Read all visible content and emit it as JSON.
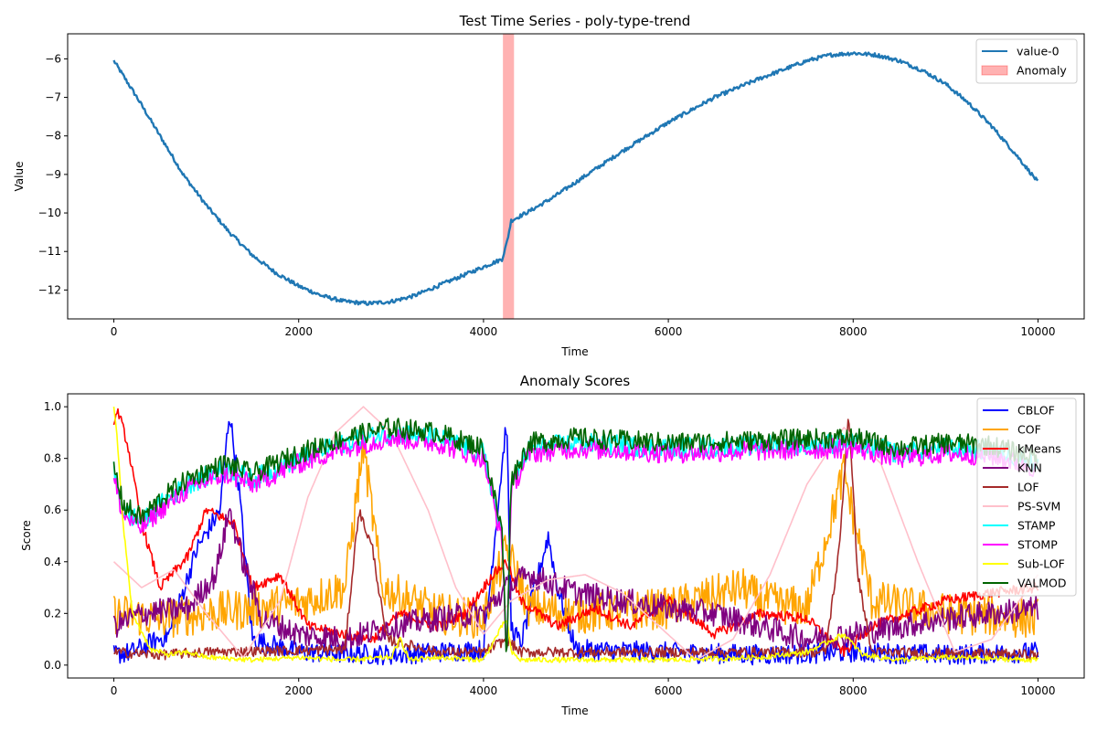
{
  "chart_data": [
    {
      "type": "line",
      "title": "Test Time Series - poly-type-trend",
      "xlabel": "Time",
      "ylabel": "Value",
      "xlim": [
        -500,
        10500
      ],
      "ylim": [
        -12.75,
        -5.35
      ],
      "xticks": [
        0,
        2000,
        4000,
        6000,
        8000,
        10000
      ],
      "yticks": [
        -12,
        -11,
        -10,
        -9,
        -8,
        -7,
        -6
      ],
      "grid": false,
      "legend_position": "top-right",
      "series": [
        {
          "name": "value-0",
          "color": "#1f77b4",
          "noise": 0.05,
          "x": [
            0,
            250,
            500,
            750,
            1000,
            1250,
            1500,
            1750,
            2000,
            2250,
            2500,
            2750,
            3000,
            3250,
            3500,
            3750,
            4000,
            4200,
            4250,
            4300,
            4500,
            4750,
            5000,
            5500,
            6000,
            6500,
            7000,
            7500,
            7750,
            8000,
            8250,
            8500,
            8750,
            9000,
            9250,
            9500,
            9750,
            10000
          ],
          "y": [
            -6.05,
            -7.0,
            -8.0,
            -9.0,
            -9.8,
            -10.5,
            -11.1,
            -11.55,
            -11.9,
            -12.15,
            -12.3,
            -12.35,
            -12.3,
            -12.15,
            -11.9,
            -11.65,
            -11.4,
            -11.2,
            -10.8,
            -10.2,
            -9.95,
            -9.6,
            -9.2,
            -8.4,
            -7.65,
            -7.0,
            -6.5,
            -6.05,
            -5.9,
            -5.85,
            -5.9,
            -6.05,
            -6.3,
            -6.65,
            -7.15,
            -7.75,
            -8.45,
            -9.2
          ]
        }
      ],
      "anomaly": {
        "name": "Anomaly",
        "x0": 4210,
        "x1": 4330,
        "color": "#ff0000",
        "alpha": 0.3
      }
    },
    {
      "type": "line",
      "title": "Anomaly Scores",
      "xlabel": "Time",
      "ylabel": "Score",
      "xlim": [
        -500,
        10500
      ],
      "ylim": [
        -0.05,
        1.05
      ],
      "xticks": [
        0,
        2000,
        4000,
        6000,
        8000,
        10000
      ],
      "yticks": [
        0.0,
        0.2,
        0.4,
        0.6,
        0.8,
        1.0
      ],
      "grid": false,
      "legend_position": "top-right",
      "series": [
        {
          "name": "CBLOF",
          "color": "#0000ff",
          "noise": 0.04,
          "x": [
            0,
            200,
            600,
            900,
            1150,
            1250,
            1350,
            1500,
            2000,
            3000,
            4000,
            4250,
            4300,
            4400,
            4700,
            4800,
            5000,
            6000,
            7000,
            8000,
            9000,
            10000
          ],
          "y": [
            0.04,
            0.05,
            0.12,
            0.45,
            0.6,
            0.98,
            0.7,
            0.1,
            0.05,
            0.04,
            0.06,
            0.95,
            0.15,
            0.08,
            0.5,
            0.3,
            0.06,
            0.05,
            0.04,
            0.05,
            0.04,
            0.05
          ]
        },
        {
          "name": "COF",
          "color": "#ffa500",
          "noise": 0.08,
          "x": [
            0,
            500,
            1000,
            1500,
            2000,
            2500,
            2700,
            2900,
            3500,
            4000,
            4250,
            4500,
            5000,
            6000,
            6800,
            7000,
            7500,
            7900,
            8200,
            9000,
            10000
          ],
          "y": [
            0.2,
            0.18,
            0.2,
            0.22,
            0.24,
            0.3,
            0.85,
            0.3,
            0.2,
            0.18,
            0.45,
            0.22,
            0.2,
            0.22,
            0.3,
            0.25,
            0.22,
            0.75,
            0.25,
            0.2,
            0.18
          ]
        },
        {
          "name": "kMeans",
          "color": "#ff0000",
          "noise": 0.02,
          "x": [
            0,
            50,
            150,
            300,
            500,
            800,
            1000,
            1300,
            1500,
            1800,
            2100,
            2500,
            2800,
            3100,
            3500,
            3800,
            4100,
            4250,
            4400,
            4800,
            5200,
            5600,
            6000,
            6500,
            7000,
            7500,
            7900,
            8200,
            8600,
            9000,
            9500,
            10000
          ],
          "y": [
            0.95,
            0.98,
            0.85,
            0.55,
            0.3,
            0.42,
            0.6,
            0.55,
            0.3,
            0.35,
            0.15,
            0.12,
            0.1,
            0.2,
            0.15,
            0.2,
            0.35,
            0.4,
            0.25,
            0.15,
            0.22,
            0.15,
            0.25,
            0.12,
            0.2,
            0.18,
            0.05,
            0.15,
            0.2,
            0.25,
            0.28,
            0.3
          ]
        },
        {
          "name": "KNN",
          "color": "#800080",
          "noise": 0.05,
          "x": [
            0,
            300,
            800,
            1100,
            1250,
            1400,
            1600,
            2000,
            2500,
            3000,
            3500,
            4000,
            4250,
            4500,
            5000,
            5500,
            6000,
            6500,
            7000,
            7500,
            8000,
            8500,
            9000,
            10000
          ],
          "y": [
            0.15,
            0.2,
            0.22,
            0.35,
            0.6,
            0.4,
            0.18,
            0.12,
            0.1,
            0.15,
            0.18,
            0.2,
            0.3,
            0.35,
            0.28,
            0.25,
            0.22,
            0.2,
            0.15,
            0.1,
            0.12,
            0.15,
            0.18,
            0.22
          ]
        },
        {
          "name": "LOF",
          "color": "#a52a2a",
          "noise": 0.02,
          "x": [
            0,
            500,
            1000,
            2500,
            2650,
            2800,
            2950,
            3500,
            4000,
            4250,
            4400,
            7700,
            7850,
            7950,
            8050,
            8200,
            10000
          ],
          "y": [
            0.05,
            0.04,
            0.05,
            0.06,
            0.6,
            0.45,
            0.1,
            0.05,
            0.05,
            0.1,
            0.05,
            0.05,
            0.45,
            0.98,
            0.35,
            0.05,
            0.04
          ]
        },
        {
          "name": "PS-SVM",
          "color": "#ffc0cb",
          "noise": 0.0,
          "x": [
            0,
            300,
            650,
            1000,
            1400,
            1800,
            2100,
            2400,
            2700,
            3000,
            3400,
            3700,
            4000,
            4300,
            4700,
            5100,
            5500,
            5900,
            6300,
            6700,
            7100,
            7500,
            7900,
            8300,
            8700,
            9100,
            9500,
            10000
          ],
          "y": [
            0.4,
            0.3,
            0.37,
            0.2,
            0.03,
            0.25,
            0.65,
            0.9,
            1.0,
            0.9,
            0.6,
            0.3,
            0.12,
            0.25,
            0.33,
            0.35,
            0.28,
            0.15,
            0.02,
            0.1,
            0.35,
            0.7,
            0.92,
            0.78,
            0.4,
            0.05,
            0.1,
            0.35
          ]
        },
        {
          "name": "STAMP",
          "color": "#00ffff",
          "noise": 0.04,
          "x": [
            0,
            100,
            300,
            500,
            800,
            1200,
            1500,
            2000,
            2500,
            3000,
            3500,
            4000,
            4200,
            4250,
            4300,
            4500,
            5000,
            6000,
            7000,
            8000,
            8500,
            9000,
            9500,
            10000
          ],
          "y": [
            0.75,
            0.6,
            0.55,
            0.62,
            0.7,
            0.76,
            0.72,
            0.8,
            0.86,
            0.9,
            0.88,
            0.82,
            0.5,
            0.05,
            0.7,
            0.84,
            0.86,
            0.84,
            0.85,
            0.86,
            0.82,
            0.84,
            0.83,
            0.78
          ]
        },
        {
          "name": "STOMP",
          "color": "#ff00ff",
          "noise": 0.04,
          "x": [
            0,
            100,
            300,
            500,
            800,
            1200,
            1500,
            2000,
            2500,
            3000,
            3500,
            4000,
            4200,
            4250,
            4300,
            4500,
            5000,
            6000,
            7000,
            8000,
            8500,
            9000,
            9500,
            10000
          ],
          "y": [
            0.72,
            0.58,
            0.53,
            0.6,
            0.68,
            0.74,
            0.7,
            0.78,
            0.84,
            0.88,
            0.86,
            0.8,
            0.48,
            0.03,
            0.68,
            0.82,
            0.84,
            0.82,
            0.83,
            0.84,
            0.8,
            0.82,
            0.81,
            0.76
          ]
        },
        {
          "name": "Sub-LOF",
          "color": "#ffff00",
          "noise": 0.01,
          "x": [
            0,
            30,
            100,
            200,
            400,
            600,
            800,
            1000,
            1500,
            2000,
            2500,
            3000,
            3100,
            3200,
            3500,
            4000,
            4200,
            4250,
            4300,
            4400,
            5000,
            6000,
            7000,
            7500,
            7900,
            8000,
            8100,
            8500,
            9000,
            10000
          ],
          "y": [
            1.0,
            0.9,
            0.55,
            0.2,
            0.06,
            0.04,
            0.05,
            0.03,
            0.02,
            0.03,
            0.02,
            0.03,
            0.1,
            0.02,
            0.03,
            0.02,
            0.15,
            0.18,
            0.05,
            0.02,
            0.02,
            0.02,
            0.03,
            0.05,
            0.12,
            0.08,
            0.04,
            0.02,
            0.03,
            0.02
          ]
        },
        {
          "name": "VALMOD",
          "color": "#006400",
          "noise": 0.04,
          "x": [
            0,
            100,
            300,
            500,
            800,
            1200,
            1500,
            2000,
            2500,
            3000,
            3500,
            4000,
            4200,
            4250,
            4300,
            4500,
            5000,
            6000,
            7000,
            8000,
            8500,
            9000,
            9500,
            10000
          ],
          "y": [
            0.77,
            0.62,
            0.57,
            0.64,
            0.72,
            0.78,
            0.74,
            0.82,
            0.88,
            0.92,
            0.9,
            0.84,
            0.52,
            0.02,
            0.72,
            0.86,
            0.88,
            0.86,
            0.87,
            0.88,
            0.84,
            0.86,
            0.85,
            0.8
          ]
        }
      ]
    }
  ]
}
